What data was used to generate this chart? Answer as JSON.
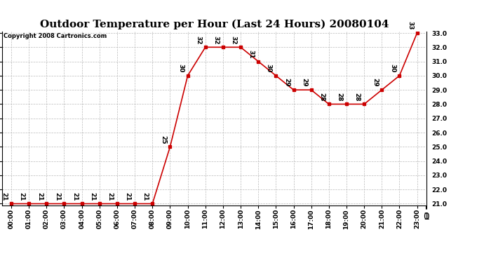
{
  "title": "Outdoor Temperature per Hour (Last 24 Hours) 20080104",
  "copyright": "Copyright 2008 Cartronics.com",
  "hours": [
    "00:00",
    "01:00",
    "02:00",
    "03:00",
    "04:00",
    "05:00",
    "06:00",
    "07:00",
    "08:00",
    "09:00",
    "10:00",
    "11:00",
    "12:00",
    "13:00",
    "14:00",
    "15:00",
    "16:00",
    "17:00",
    "18:00",
    "19:00",
    "20:00",
    "21:00",
    "22:00",
    "23:00"
  ],
  "temps": [
    21,
    21,
    21,
    21,
    21,
    21,
    21,
    21,
    21,
    25,
    30,
    32,
    32,
    32,
    31,
    30,
    29,
    29,
    28,
    28,
    28,
    29,
    30,
    33
  ],
  "ylim_min": 21.0,
  "ylim_max": 33.0,
  "line_color": "#cc0000",
  "marker": "s",
  "marker_size": 3,
  "bg_color": "#ffffff",
  "grid_color": "#bbbbbb",
  "title_fontsize": 11,
  "label_fontsize": 6.5,
  "annotation_fontsize": 6.5,
  "copyright_fontsize": 6,
  "yticks": [
    21.0,
    22.0,
    23.0,
    24.0,
    25.0,
    26.0,
    27.0,
    28.0,
    29.0,
    30.0,
    31.0,
    32.0,
    33.0
  ]
}
